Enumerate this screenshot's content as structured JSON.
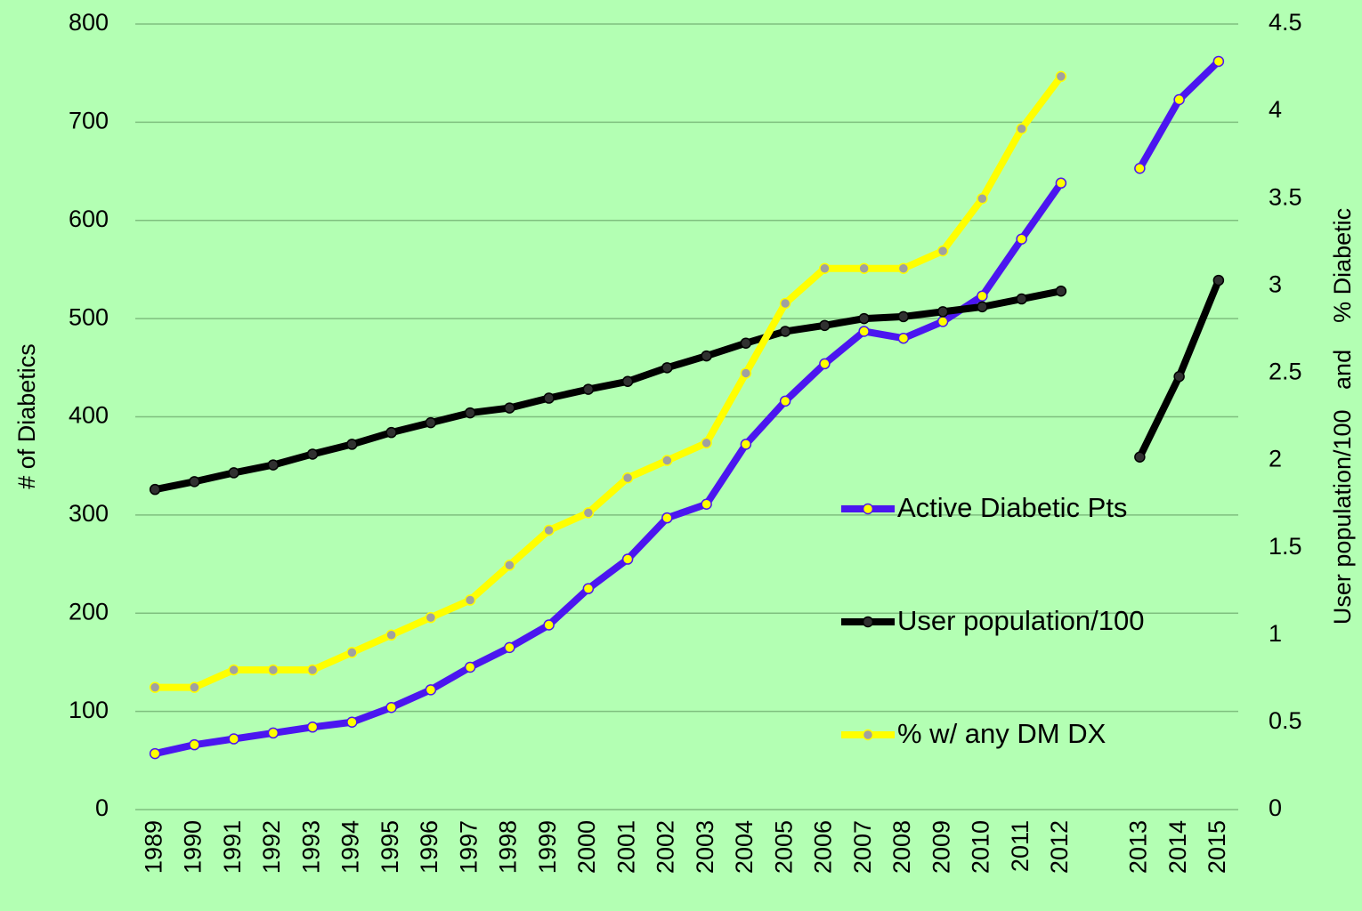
{
  "chart_data": {
    "type": "line",
    "categories": [
      "1989",
      "1990",
      "1991",
      "1992",
      "1993",
      "1994",
      "1995",
      "1996",
      "1997",
      "1998",
      "1999",
      "2000",
      "2001",
      "2002",
      "2003",
      "2004",
      "2005",
      "2006",
      "2007",
      "2008",
      "2009",
      "2010",
      "2011",
      "2012",
      null,
      "2013",
      "2014",
      "2015"
    ],
    "series": [
      {
        "name": "Active Diabetic Pts",
        "color": "#4b16f0",
        "marker_color": "#ffff00",
        "axis": "y",
        "values": [
          57,
          66,
          72,
          78,
          84,
          89,
          104,
          122,
          145,
          165,
          188,
          225,
          255,
          297,
          311,
          372,
          416,
          454,
          487,
          480,
          497,
          523,
          581,
          638,
          null,
          653,
          723,
          762
        ]
      },
      {
        "name": "User population/100",
        "color": "#000000",
        "marker_color": "#303030",
        "axis": "y",
        "values": [
          326,
          334,
          343,
          351,
          362,
          372,
          384,
          394,
          404,
          409,
          419,
          428,
          436,
          450,
          462,
          475,
          487,
          493,
          500,
          502,
          507,
          512,
          520,
          528,
          null,
          359,
          441,
          539
        ]
      },
      {
        "name": "% w/ any DM DX",
        "color": "#ffff00",
        "marker_color": "#a0a0a0",
        "axis": "y2",
        "values": [
          0.7,
          0.7,
          0.8,
          0.8,
          0.8,
          0.9,
          1.0,
          1.1,
          1.2,
          1.4,
          1.6,
          1.7,
          1.9,
          2.0,
          2.1,
          2.5,
          2.9,
          3.1,
          3.1,
          3.1,
          3.2,
          3.5,
          3.9,
          4.2,
          null,
          null,
          null,
          null
        ]
      }
    ],
    "ylabel": "# of Diabetics",
    "y2label": "User population/100   and    % Diabetic",
    "ylim": [
      0,
      800
    ],
    "yticks": [
      0,
      100,
      200,
      300,
      400,
      500,
      600,
      700,
      800
    ],
    "y2lim": [
      0,
      4.5
    ],
    "y2ticks": [
      0,
      0.5,
      1,
      1.5,
      2,
      2.5,
      3,
      3.5,
      4,
      4.5
    ],
    "grid": true,
    "legend": "right"
  }
}
